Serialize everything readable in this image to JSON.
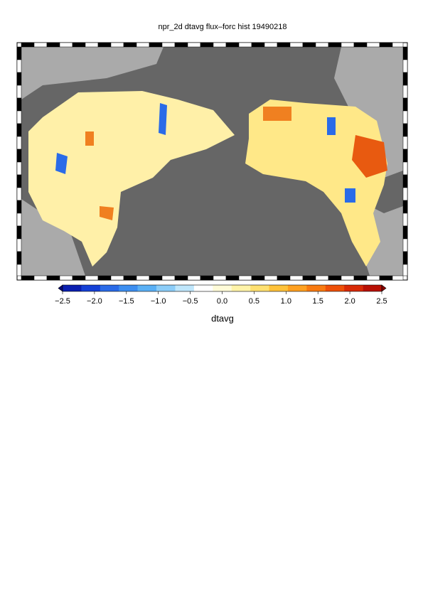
{
  "title": "npr_2d dtavg flux–forc hist 19490218",
  "colorbar": {
    "label": "dtavg",
    "lim": [
      -2.5,
      2.5
    ],
    "ticks": [
      {
        "value": -2.5,
        "label": "−2.5"
      },
      {
        "value": -2,
        "label": "−2.0"
      },
      {
        "value": -1.5,
        "label": "−1.5"
      },
      {
        "value": -1,
        "label": "−1.0"
      },
      {
        "value": -0.5,
        "label": "−0.5"
      },
      {
        "value": 0,
        "label": "0.0"
      },
      0.5,
      {
        "value": 1,
        "label": "1.0"
      },
      1.5,
      {
        "value": 2,
        "label": "2.0"
      },
      2.5
    ],
    "colors": [
      "#0a0a7a",
      "#0a1fb0",
      "#1440d6",
      "#2a6be8",
      "#3c8ef0",
      "#5ab0f5",
      "#8ccdf8",
      "#bfe6fb",
      "#ffffff",
      "#fffbd8",
      "#fff3a8",
      "#ffe070",
      "#ffc23a",
      "#ffa020",
      "#f87a10",
      "#ee5008",
      "#d82a06",
      "#b81004",
      "#8a0202"
    ]
  }
}
